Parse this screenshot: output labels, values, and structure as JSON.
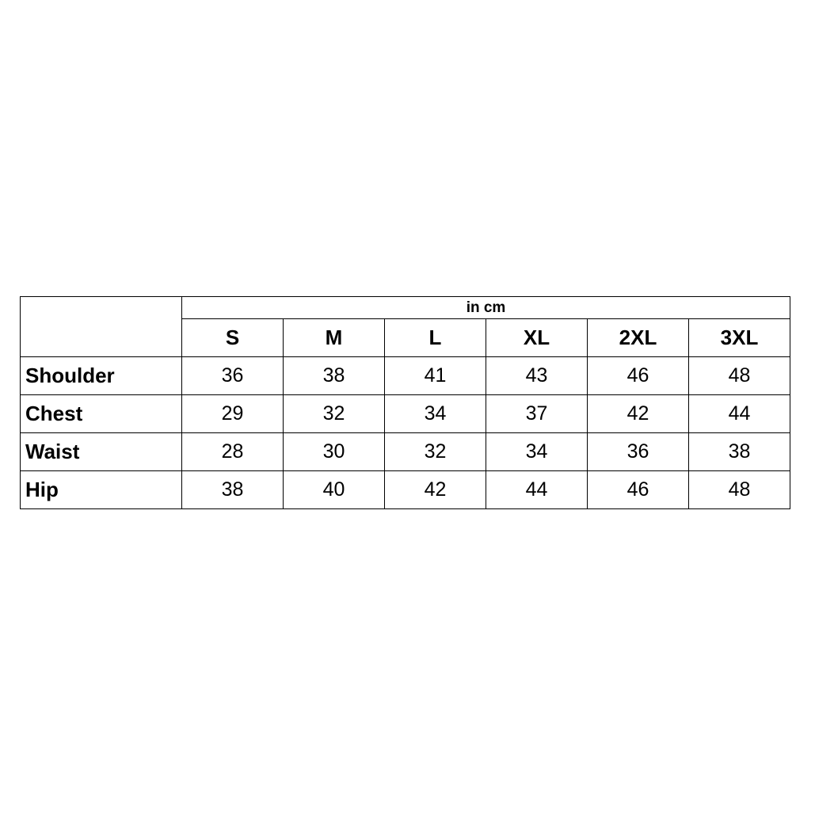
{
  "unit_label": "in cm",
  "sizes": [
    "S",
    "M",
    "L",
    "XL",
    "2XL",
    "3XL"
  ],
  "rows": [
    {
      "label": "Shoulder",
      "values": [
        "36",
        "38",
        "41",
        "43",
        "46",
        "48"
      ]
    },
    {
      "label": "Chest",
      "values": [
        "29",
        "32",
        "34",
        "37",
        "42",
        "44"
      ]
    },
    {
      "label": "Waist",
      "values": [
        "28",
        "30",
        "32",
        "34",
        "36",
        "38"
      ]
    },
    {
      "label": "Hip",
      "values": [
        "38",
        "40",
        "42",
        "44",
        "46",
        "48"
      ]
    }
  ]
}
